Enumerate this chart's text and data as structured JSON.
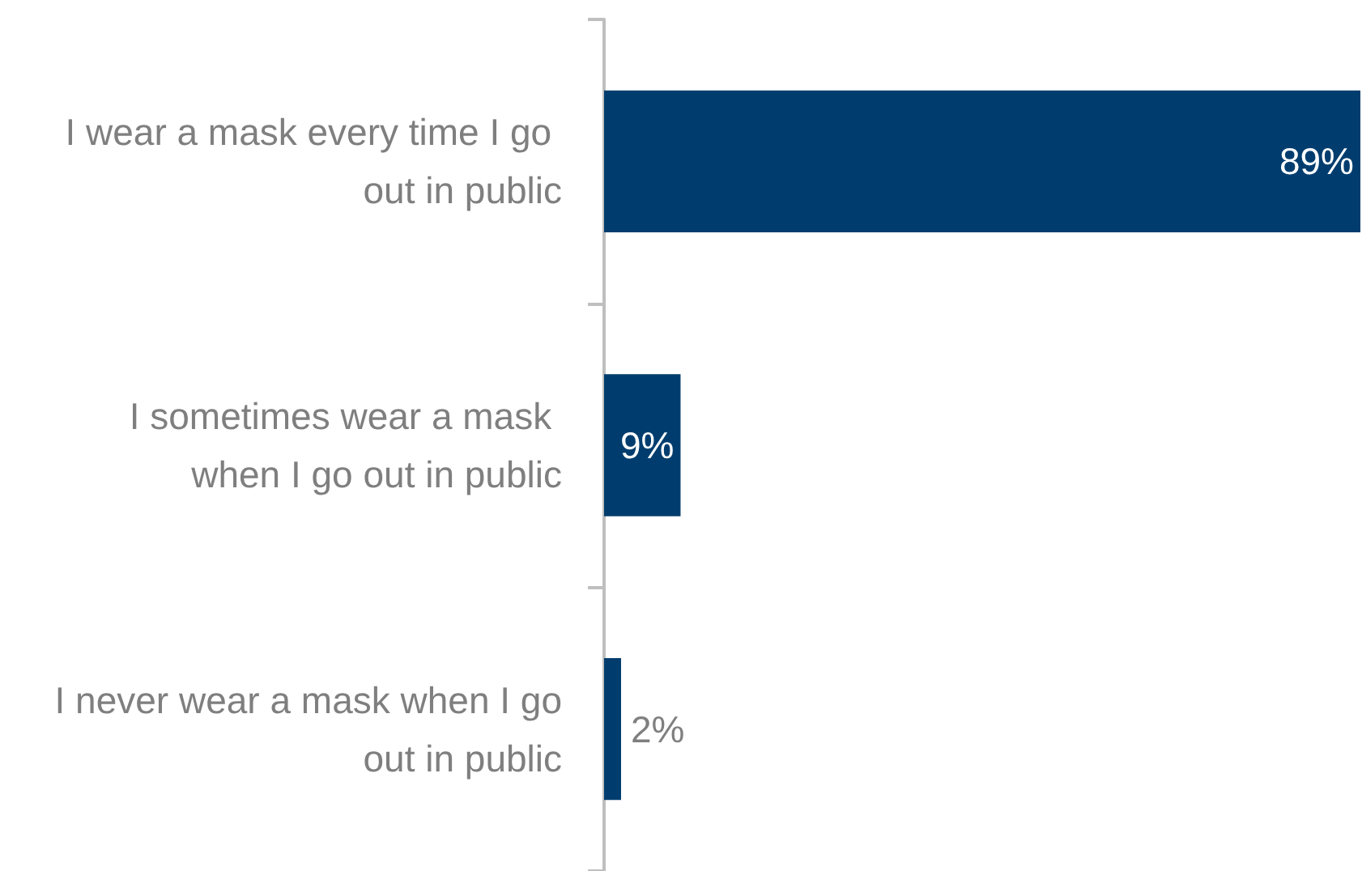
{
  "chart_data": {
    "type": "bar",
    "orientation": "horizontal",
    "categories": [
      "I wear a mask every time I go out in public",
      "I sometimes wear a mask when I go out in public",
      "I never wear a mask when I go out in public"
    ],
    "values": [
      89,
      9,
      2
    ],
    "value_labels": [
      "89%",
      "9%",
      "2%"
    ],
    "color": "#003d6e"
  }
}
